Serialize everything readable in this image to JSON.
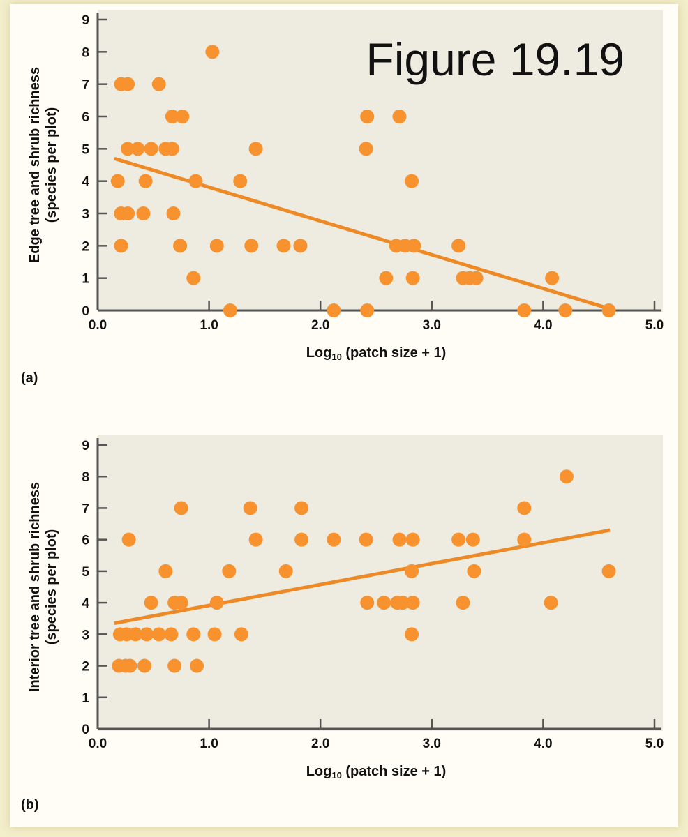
{
  "figure_label": "Figure 19.19",
  "colors": {
    "point": "#f7922e",
    "line": "#ee8a26",
    "plot_bg": "#eeebe0",
    "axis": "#555555"
  },
  "chart_data": [
    {
      "type": "scatter",
      "panel": "(a)",
      "xlabel": "Log10 (patch size + 1)",
      "xlabel_main": "Log",
      "xlabel_sub": "10",
      "xlabel_rest": " (patch size + 1)",
      "ylabel": "Edge tree and shrub richness",
      "ylabel2": "(species per plot)",
      "xlim": [
        0,
        5
      ],
      "ylim": [
        0,
        9
      ],
      "xticks": [
        "0.0",
        "1.0",
        "2.0",
        "3.0",
        "4.0",
        "5.0"
      ],
      "yticks": [
        "0",
        "1",
        "2",
        "3",
        "4",
        "5",
        "6",
        "7",
        "8",
        "9"
      ],
      "points": [
        [
          0.21,
          7
        ],
        [
          0.27,
          7
        ],
        [
          0.55,
          7
        ],
        [
          1.03,
          8
        ],
        [
          0.67,
          6
        ],
        [
          0.76,
          6
        ],
        [
          2.42,
          6
        ],
        [
          2.71,
          6
        ],
        [
          0.27,
          5
        ],
        [
          0.36,
          5
        ],
        [
          0.48,
          5
        ],
        [
          0.61,
          5
        ],
        [
          0.67,
          5
        ],
        [
          1.42,
          5
        ],
        [
          2.41,
          5
        ],
        [
          0.18,
          4
        ],
        [
          0.43,
          4
        ],
        [
          0.88,
          4
        ],
        [
          1.28,
          4
        ],
        [
          2.82,
          4
        ],
        [
          0.21,
          3
        ],
        [
          0.27,
          3
        ],
        [
          0.41,
          3
        ],
        [
          0.68,
          3
        ],
        [
          0.21,
          2
        ],
        [
          0.74,
          2
        ],
        [
          1.07,
          2
        ],
        [
          1.38,
          2
        ],
        [
          1.67,
          2
        ],
        [
          1.82,
          2
        ],
        [
          2.68,
          2
        ],
        [
          2.76,
          2
        ],
        [
          2.84,
          2
        ],
        [
          3.24,
          2
        ],
        [
          0.86,
          1
        ],
        [
          2.59,
          1
        ],
        [
          2.83,
          1
        ],
        [
          3.28,
          1
        ],
        [
          3.34,
          1
        ],
        [
          3.4,
          1
        ],
        [
          4.08,
          1
        ],
        [
          1.19,
          0
        ],
        [
          2.12,
          0
        ],
        [
          2.42,
          0
        ],
        [
          3.83,
          0
        ],
        [
          4.2,
          0
        ],
        [
          4.59,
          0
        ]
      ],
      "trendline": [
        [
          0.15,
          4.7
        ],
        [
          4.6,
          0.05
        ]
      ]
    },
    {
      "type": "scatter",
      "panel": "(b)",
      "xlabel": "Log10 (patch size + 1)",
      "xlabel_main": "Log",
      "xlabel_sub": "10",
      "xlabel_rest": " (patch size + 1)",
      "ylabel": "Interior  tree and shrub richness",
      "ylabel2": "(species per plot)",
      "xlim": [
        0,
        5
      ],
      "ylim": [
        0,
        9
      ],
      "xticks": [
        "0.0",
        "1.0",
        "2.0",
        "3.0",
        "4.0",
        "5.0"
      ],
      "yticks": [
        "0",
        "1",
        "2",
        "3",
        "4",
        "5",
        "6",
        "7",
        "8",
        "9"
      ],
      "points": [
        [
          4.21,
          8
        ],
        [
          0.75,
          7
        ],
        [
          1.37,
          7
        ],
        [
          1.83,
          7
        ],
        [
          3.83,
          7
        ],
        [
          0.28,
          6
        ],
        [
          1.42,
          6
        ],
        [
          1.83,
          6
        ],
        [
          2.12,
          6
        ],
        [
          2.41,
          6
        ],
        [
          2.71,
          6
        ],
        [
          2.83,
          6
        ],
        [
          3.24,
          6
        ],
        [
          3.37,
          6
        ],
        [
          3.83,
          6
        ],
        [
          0.61,
          5
        ],
        [
          1.18,
          5
        ],
        [
          1.69,
          5
        ],
        [
          2.82,
          5
        ],
        [
          3.38,
          5
        ],
        [
          4.59,
          5
        ],
        [
          0.48,
          4
        ],
        [
          0.69,
          4
        ],
        [
          0.75,
          4
        ],
        [
          1.07,
          4
        ],
        [
          2.42,
          4
        ],
        [
          2.57,
          4
        ],
        [
          2.69,
          4
        ],
        [
          2.74,
          4
        ],
        [
          2.83,
          4
        ],
        [
          3.28,
          4
        ],
        [
          4.07,
          4
        ],
        [
          0.2,
          3
        ],
        [
          0.26,
          3
        ],
        [
          0.34,
          3
        ],
        [
          0.44,
          3
        ],
        [
          0.55,
          3
        ],
        [
          0.66,
          3
        ],
        [
          0.86,
          3
        ],
        [
          1.05,
          3
        ],
        [
          1.29,
          3
        ],
        [
          2.82,
          3
        ],
        [
          0.19,
          2
        ],
        [
          0.25,
          2
        ],
        [
          0.29,
          2
        ],
        [
          0.42,
          2
        ],
        [
          0.69,
          2
        ],
        [
          0.89,
          2
        ]
      ],
      "trendline": [
        [
          0.15,
          3.35
        ],
        [
          4.6,
          6.3
        ]
      ]
    }
  ]
}
